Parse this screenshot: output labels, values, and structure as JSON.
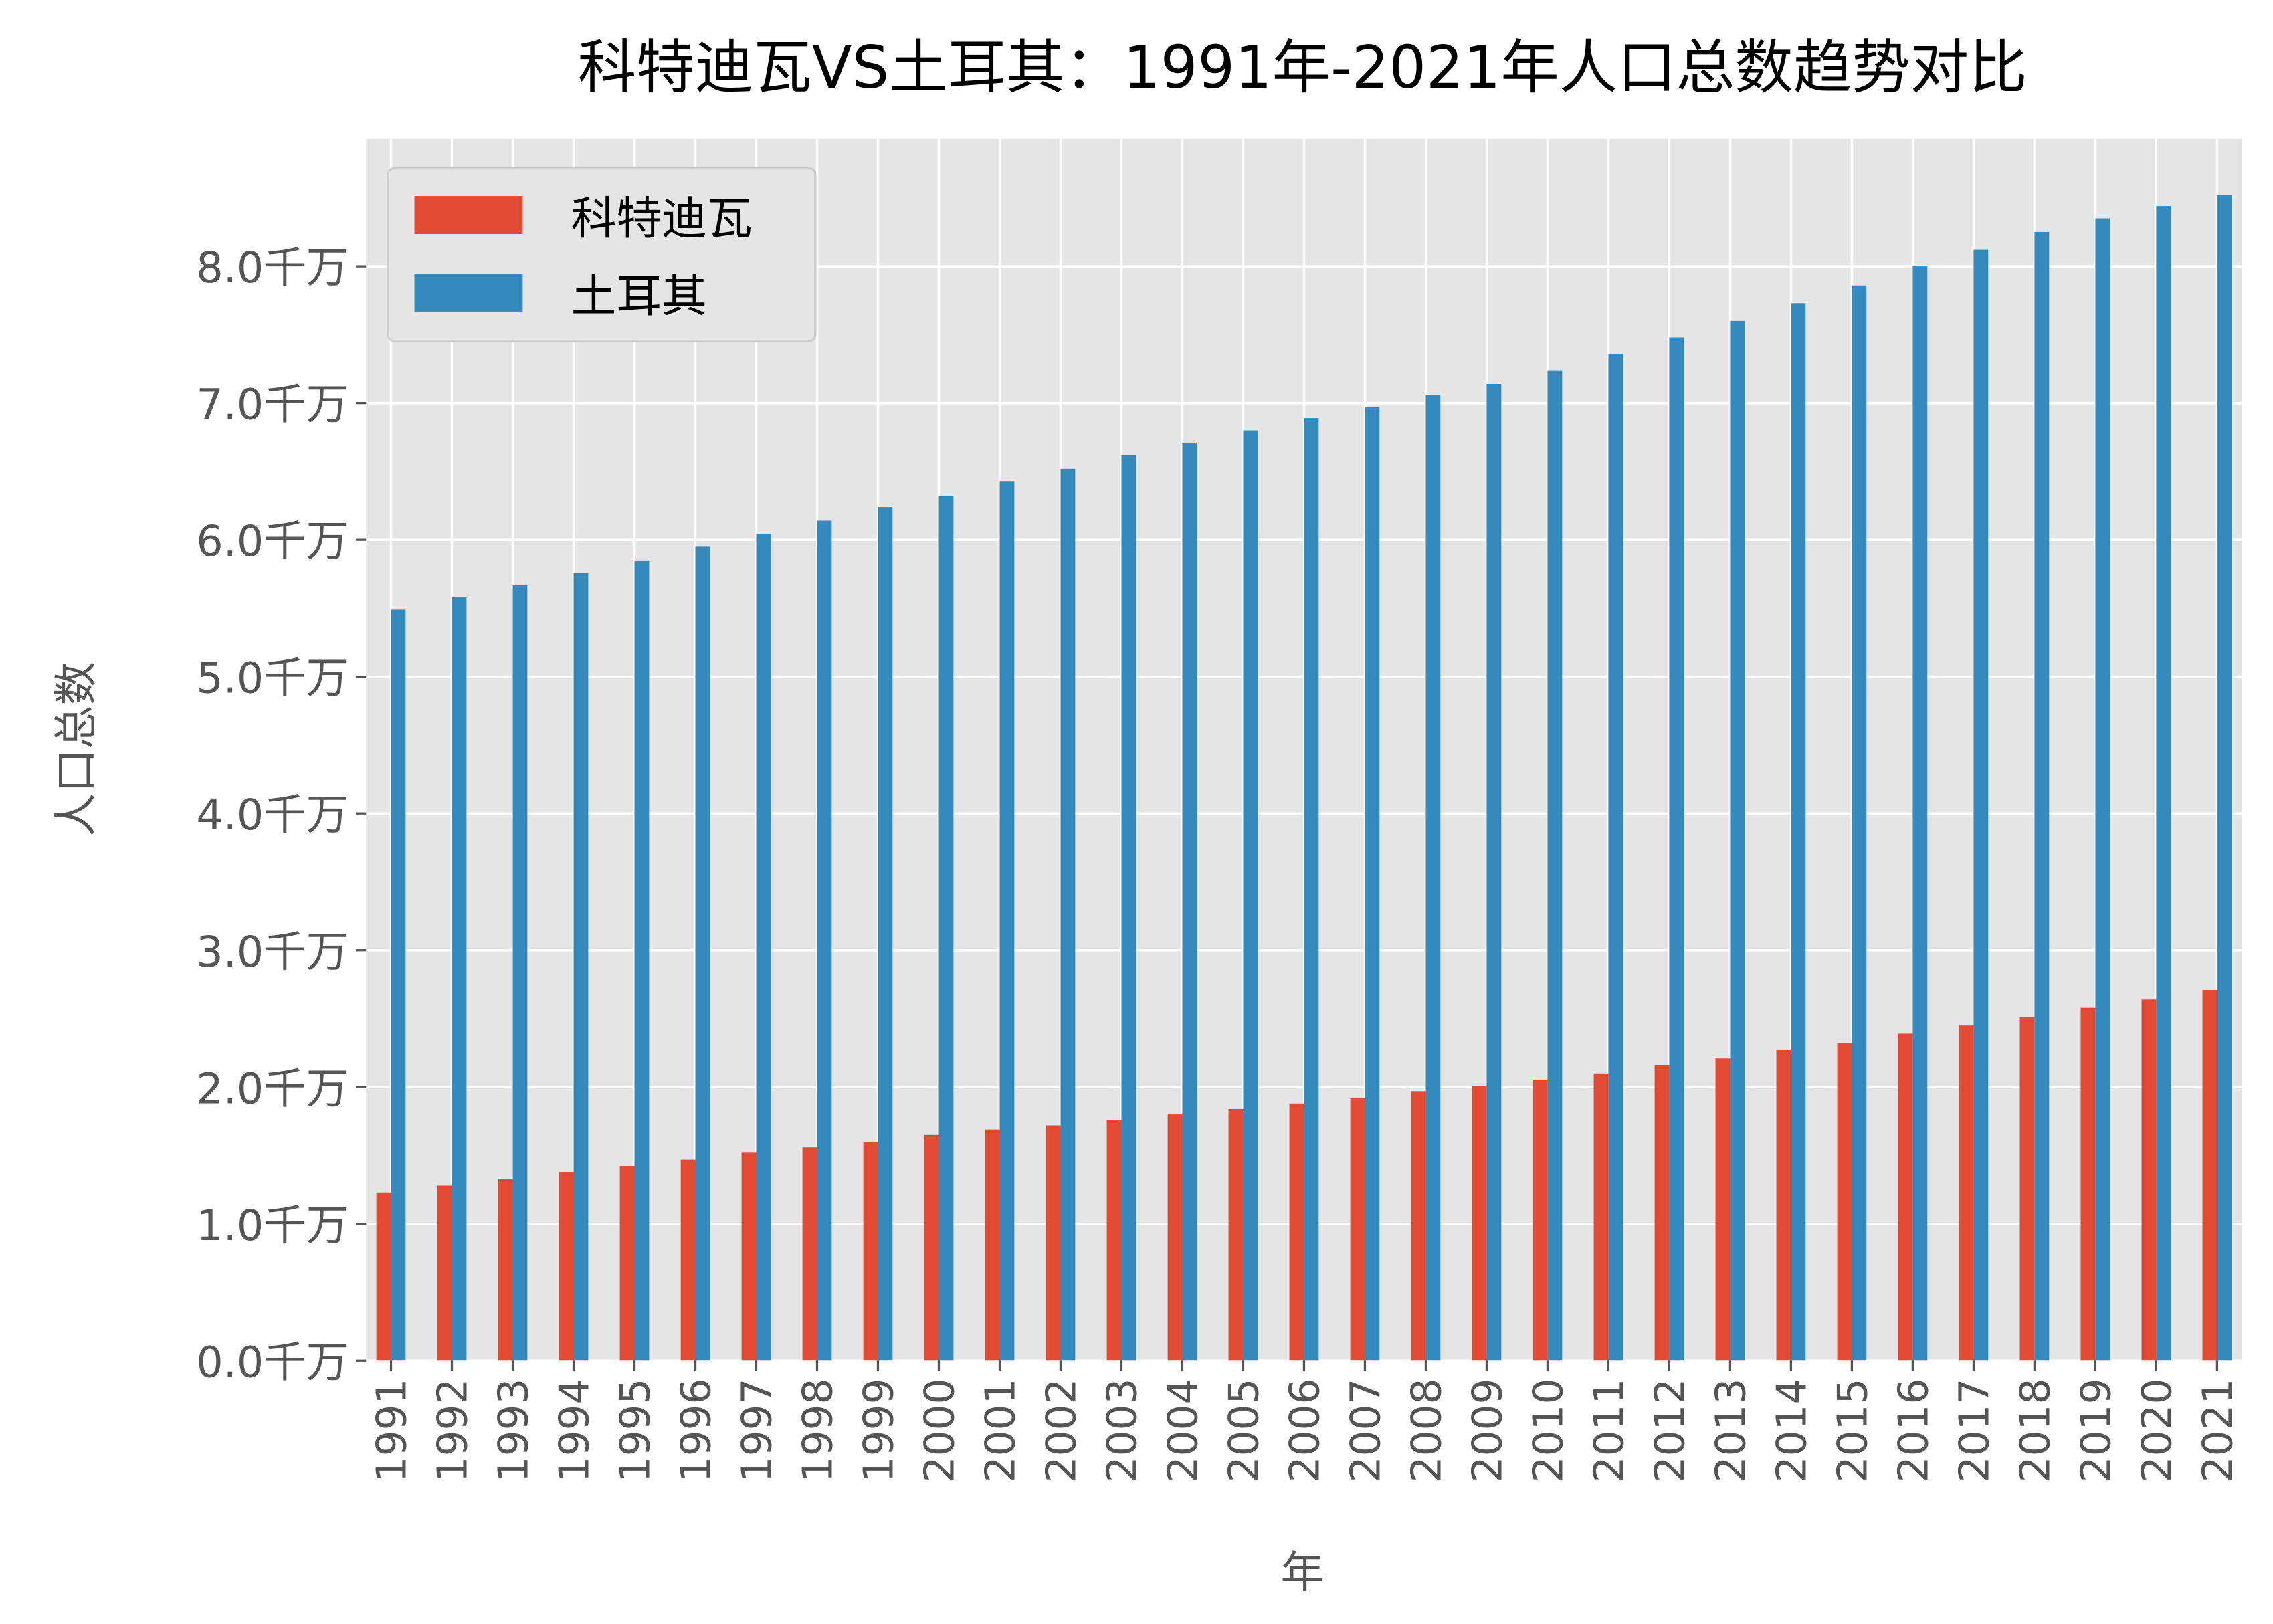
{
  "chart_data": {
    "type": "bar",
    "title": "科特迪瓦VS土耳其：1991年-2021年人口总数趋势对比",
    "xlabel": "年",
    "ylabel": "人口总数",
    "ylim": [
      0,
      8.9
    ],
    "y_unit": "千万",
    "y_ticks": [
      "0.0千万",
      "1.0千万",
      "2.0千万",
      "3.0千万",
      "4.0千万",
      "5.0千万",
      "6.0千万",
      "7.0千万",
      "8.0千万"
    ],
    "grid": true,
    "legend_position": "top-left",
    "categories": [
      "1991",
      "1992",
      "1993",
      "1994",
      "1995",
      "1996",
      "1997",
      "1998",
      "1999",
      "2000",
      "2001",
      "2002",
      "2003",
      "2004",
      "2005",
      "2006",
      "2007",
      "2008",
      "2009",
      "2010",
      "2011",
      "2012",
      "2013",
      "2014",
      "2015",
      "2016",
      "2017",
      "2018",
      "2019",
      "2020",
      "2021"
    ],
    "series": [
      {
        "name": "科特迪瓦",
        "color": "#E24A33",
        "values": [
          1.23,
          1.28,
          1.33,
          1.38,
          1.42,
          1.47,
          1.52,
          1.56,
          1.6,
          1.65,
          1.69,
          1.72,
          1.76,
          1.8,
          1.84,
          1.88,
          1.92,
          1.97,
          2.01,
          2.05,
          2.1,
          2.16,
          2.21,
          2.27,
          2.32,
          2.39,
          2.45,
          2.51,
          2.58,
          2.64,
          2.71
        ]
      },
      {
        "name": "土耳其",
        "color": "#348ABD",
        "values": [
          5.49,
          5.58,
          5.67,
          5.76,
          5.85,
          5.95,
          6.04,
          6.14,
          6.24,
          6.32,
          6.43,
          6.52,
          6.62,
          6.71,
          6.8,
          6.89,
          6.97,
          7.06,
          7.14,
          7.24,
          7.36,
          7.48,
          7.6,
          7.73,
          7.86,
          8.0,
          8.12,
          8.25,
          8.35,
          8.44,
          8.52
        ]
      }
    ]
  }
}
